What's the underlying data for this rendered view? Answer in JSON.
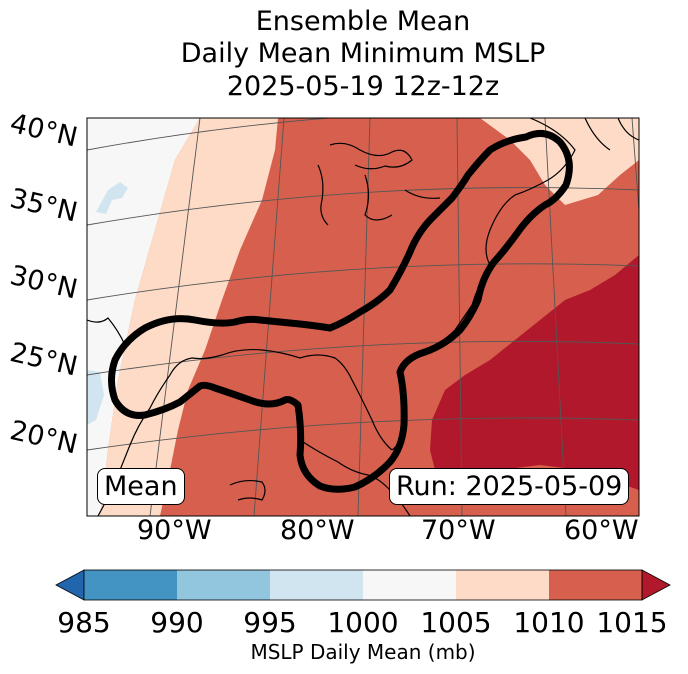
{
  "title": {
    "line1": "Ensemble Mean",
    "line2": "Daily Mean Minimum MSLP",
    "line3": "2025-05-19 12z-12z"
  },
  "map": {
    "lat_labels": [
      "40°N",
      "35°N",
      "30°N",
      "25°N",
      "20°N"
    ],
    "lon_labels": [
      "90°W",
      "80°W",
      "70°W",
      "60°W"
    ],
    "box_left": "Mean",
    "box_right": "Run: 2025-05-09"
  },
  "colorbar": {
    "ticks": [
      "985",
      "990",
      "995",
      "1000",
      "1005",
      "1010",
      "1015"
    ],
    "label": "MSLP Daily Mean (mb)",
    "bins": [
      {
        "range": "<985",
        "color": "#2166ac"
      },
      {
        "range": "985-990",
        "color": "#4393c3"
      },
      {
        "range": "990-995",
        "color": "#92c5de"
      },
      {
        "range": "995-1000",
        "color": "#d1e5f0"
      },
      {
        "range": "1000-1005",
        "color": "#f7f7f7"
      },
      {
        "range": "1005-1010",
        "color": "#fddbc7"
      },
      {
        "range": "1010-1015",
        "color": "#d6604d"
      },
      {
        "range": ">1015",
        "color": "#b2182b"
      }
    ]
  }
}
